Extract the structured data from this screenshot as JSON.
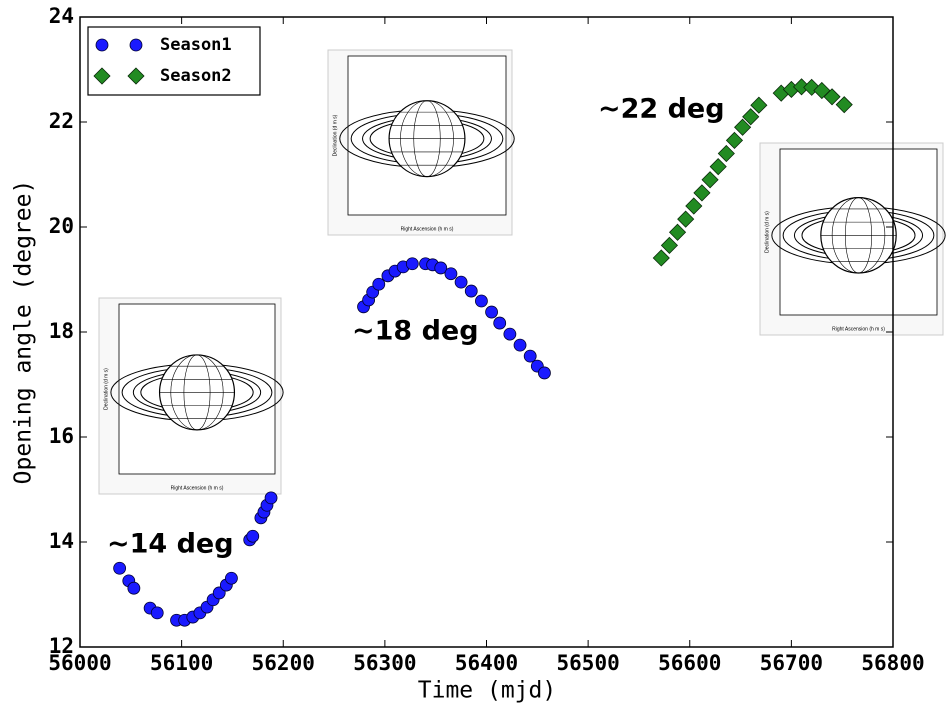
{
  "chart_data": {
    "type": "scatter",
    "xlabel": "Time (mjd)",
    "ylabel": "Opening angle (degree)",
    "xlim": [
      56000,
      56800
    ],
    "xticks": [
      56000,
      56100,
      56200,
      56300,
      56400,
      56500,
      56600,
      56700,
      56800
    ],
    "ylim": [
      12,
      24
    ],
    "yticks": [
      12,
      14,
      16,
      18,
      20,
      22,
      24
    ],
    "grid": false,
    "legend": "upper left",
    "series": [
      {
        "name": "Season1",
        "color": "#1a1aff",
        "marker": "circle",
        "x": [
          56039,
          56048,
          56053,
          56069,
          56076,
          56095,
          56103,
          56111,
          56118,
          56125,
          56131,
          56137,
          56144,
          56149,
          56167,
          56170,
          56178,
          56181,
          56184,
          56188,
          56279,
          56284,
          56288,
          56294,
          56303,
          56310,
          56318,
          56327,
          56340,
          56347,
          56355,
          56365,
          56375,
          56385,
          56395,
          56405,
          56413,
          56423,
          56433,
          56443,
          56450,
          56457
        ],
        "values": [
          13.5,
          13.26,
          13.12,
          12.74,
          12.65,
          12.51,
          12.51,
          12.57,
          12.65,
          12.76,
          12.9,
          13.03,
          13.18,
          13.31,
          14.04,
          14.11,
          14.46,
          14.57,
          14.7,
          14.84,
          18.48,
          18.61,
          18.76,
          18.91,
          19.07,
          19.16,
          19.24,
          19.3,
          19.3,
          19.28,
          19.22,
          19.11,
          18.95,
          18.78,
          18.59,
          18.38,
          18.17,
          17.96,
          17.75,
          17.54,
          17.35,
          17.22
        ]
      },
      {
        "name": "Season2",
        "color": "#228b22",
        "marker": "diamond",
        "x": [
          56572,
          56580,
          56588,
          56596,
          56604,
          56612,
          56620,
          56628,
          56636,
          56644,
          56652,
          56660,
          56668,
          56690,
          56700,
          56710,
          56720,
          56730,
          56740,
          56752
        ],
        "values": [
          19.41,
          19.65,
          19.9,
          20.15,
          20.4,
          20.65,
          20.9,
          21.15,
          21.4,
          21.65,
          21.9,
          22.1,
          22.32,
          22.55,
          22.62,
          22.67,
          22.66,
          22.6,
          22.48,
          22.33
        ]
      }
    ],
    "annotations": [
      "~14 deg",
      "~18 deg",
      "~22 deg"
    ],
    "inset_labels": {
      "x": "Right Ascension (h m s)",
      "y": "Declination (d m s)"
    }
  }
}
